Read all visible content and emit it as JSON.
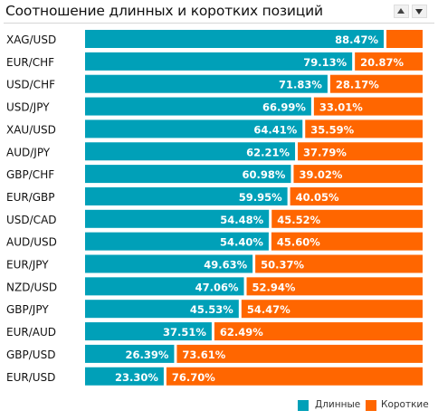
{
  "chart_data": {
    "type": "bar",
    "orientation": "horizontal",
    "stacked": true,
    "title": "Соотношение длинных и коротких позиций",
    "categories": [
      "XAG/USD",
      "EUR/CHF",
      "USD/CHF",
      "USD/JPY",
      "XAU/USD",
      "AUD/JPY",
      "GBP/CHF",
      "EUR/GBP",
      "USD/CAD",
      "AUD/USD",
      "EUR/JPY",
      "NZD/USD",
      "GBP/JPY",
      "EUR/AUD",
      "GBP/USD",
      "EUR/USD"
    ],
    "series": [
      {
        "name": "Длинные",
        "color": "#00a0b8",
        "values": [
          88.47,
          79.13,
          71.83,
          66.99,
          64.41,
          62.21,
          60.98,
          59.95,
          54.48,
          54.4,
          49.63,
          47.06,
          45.53,
          37.51,
          26.39,
          23.3
        ],
        "labels": [
          "88.47%",
          "79.13%",
          "71.83%",
          "66.99%",
          "64.41%",
          "62.21%",
          "60.98%",
          "59.95%",
          "54.48%",
          "54.40%",
          "49.63%",
          "47.06%",
          "45.53%",
          "37.51%",
          "26.39%",
          "23.30%"
        ]
      },
      {
        "name": "Короткие",
        "color": "#ff6600",
        "values": [
          11.53,
          20.87,
          28.17,
          33.01,
          35.59,
          37.79,
          39.02,
          40.05,
          45.52,
          45.6,
          50.37,
          52.94,
          54.47,
          62.49,
          73.61,
          76.7
        ],
        "labels": [
          "",
          "20.87%",
          "28.17%",
          "33.01%",
          "35.59%",
          "37.79%",
          "39.02%",
          "40.05%",
          "45.52%",
          "45.60%",
          "50.37%",
          "52.94%",
          "54.47%",
          "62.49%",
          "73.61%",
          "76.70%"
        ]
      }
    ],
    "xlim": [
      0,
      100
    ],
    "grid": false,
    "legend": "bottom-right"
  },
  "controls": {
    "up_icon": "triangle-up-icon",
    "down_icon": "triangle-down-icon"
  }
}
